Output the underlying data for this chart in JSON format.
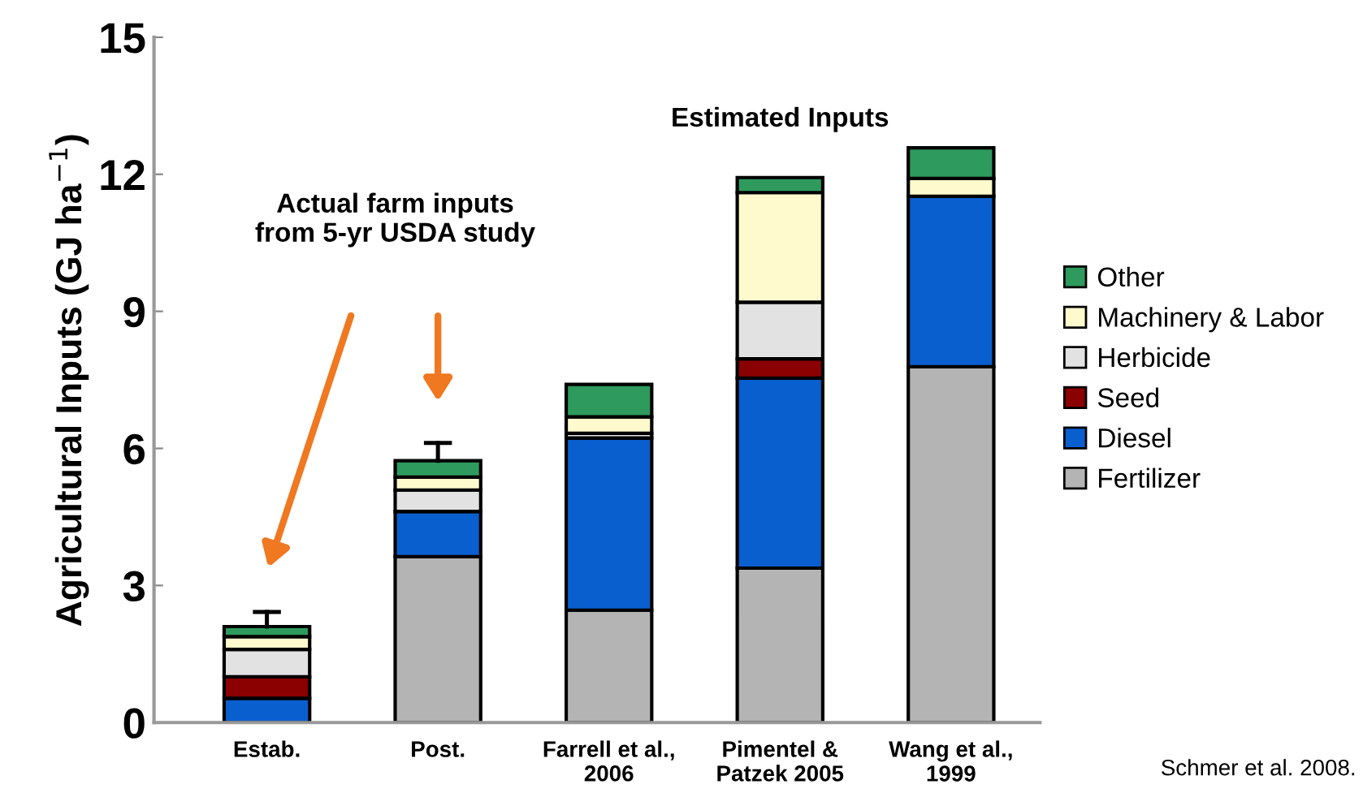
{
  "chart_data": {
    "type": "bar",
    "stacked": true,
    "ylabel": "Agricultural Inputs (GJ ha$^{−1}$)",
    "categories": [
      "Estab.",
      "Post.",
      "Farrell et al.,\n2006",
      "Pimentel &\nPatzek 2005",
      "Wang et al.,\n1999"
    ],
    "series": [
      {
        "name": "Fertilizer",
        "color": "#b4b4b4",
        "values": [
          0,
          3.63,
          2.46,
          3.38,
          7.79
        ]
      },
      {
        "name": "Diesel",
        "color": "#0a5fcf",
        "values": [
          0.53,
          0.99,
          3.77,
          4.16,
          3.73
        ]
      },
      {
        "name": "Seed",
        "color": "#8b0000",
        "values": [
          0.47,
          0,
          0,
          0.42,
          0
        ]
      },
      {
        "name": "Herbicide",
        "color": "#e2e2e2",
        "values": [
          0.6,
          0.47,
          0.1,
          1.24,
          0
        ]
      },
      {
        "name": "Machinery & Labor",
        "color": "#fffacd",
        "values": [
          0.28,
          0.28,
          0.36,
          2.4,
          0.39
        ]
      },
      {
        "name": "Other",
        "color": "#2e9a5e",
        "values": [
          0.22,
          0.36,
          0.71,
          0.33,
          0.67
        ],
        "errors": [
          [
            2.1,
            2.42
          ],
          [
            5.73,
            6.12
          ],
          null,
          null,
          null
        ]
      }
    ],
    "ylim": [
      0,
      15
    ],
    "yticks": [
      0,
      3,
      6,
      9,
      12,
      15
    ],
    "grid": false,
    "legend": "right",
    "annotations": [
      "Actual farm inputs from 5-yr USDA study",
      "Estimated Inputs",
      "Schmer et al. 2008."
    ]
  }
}
